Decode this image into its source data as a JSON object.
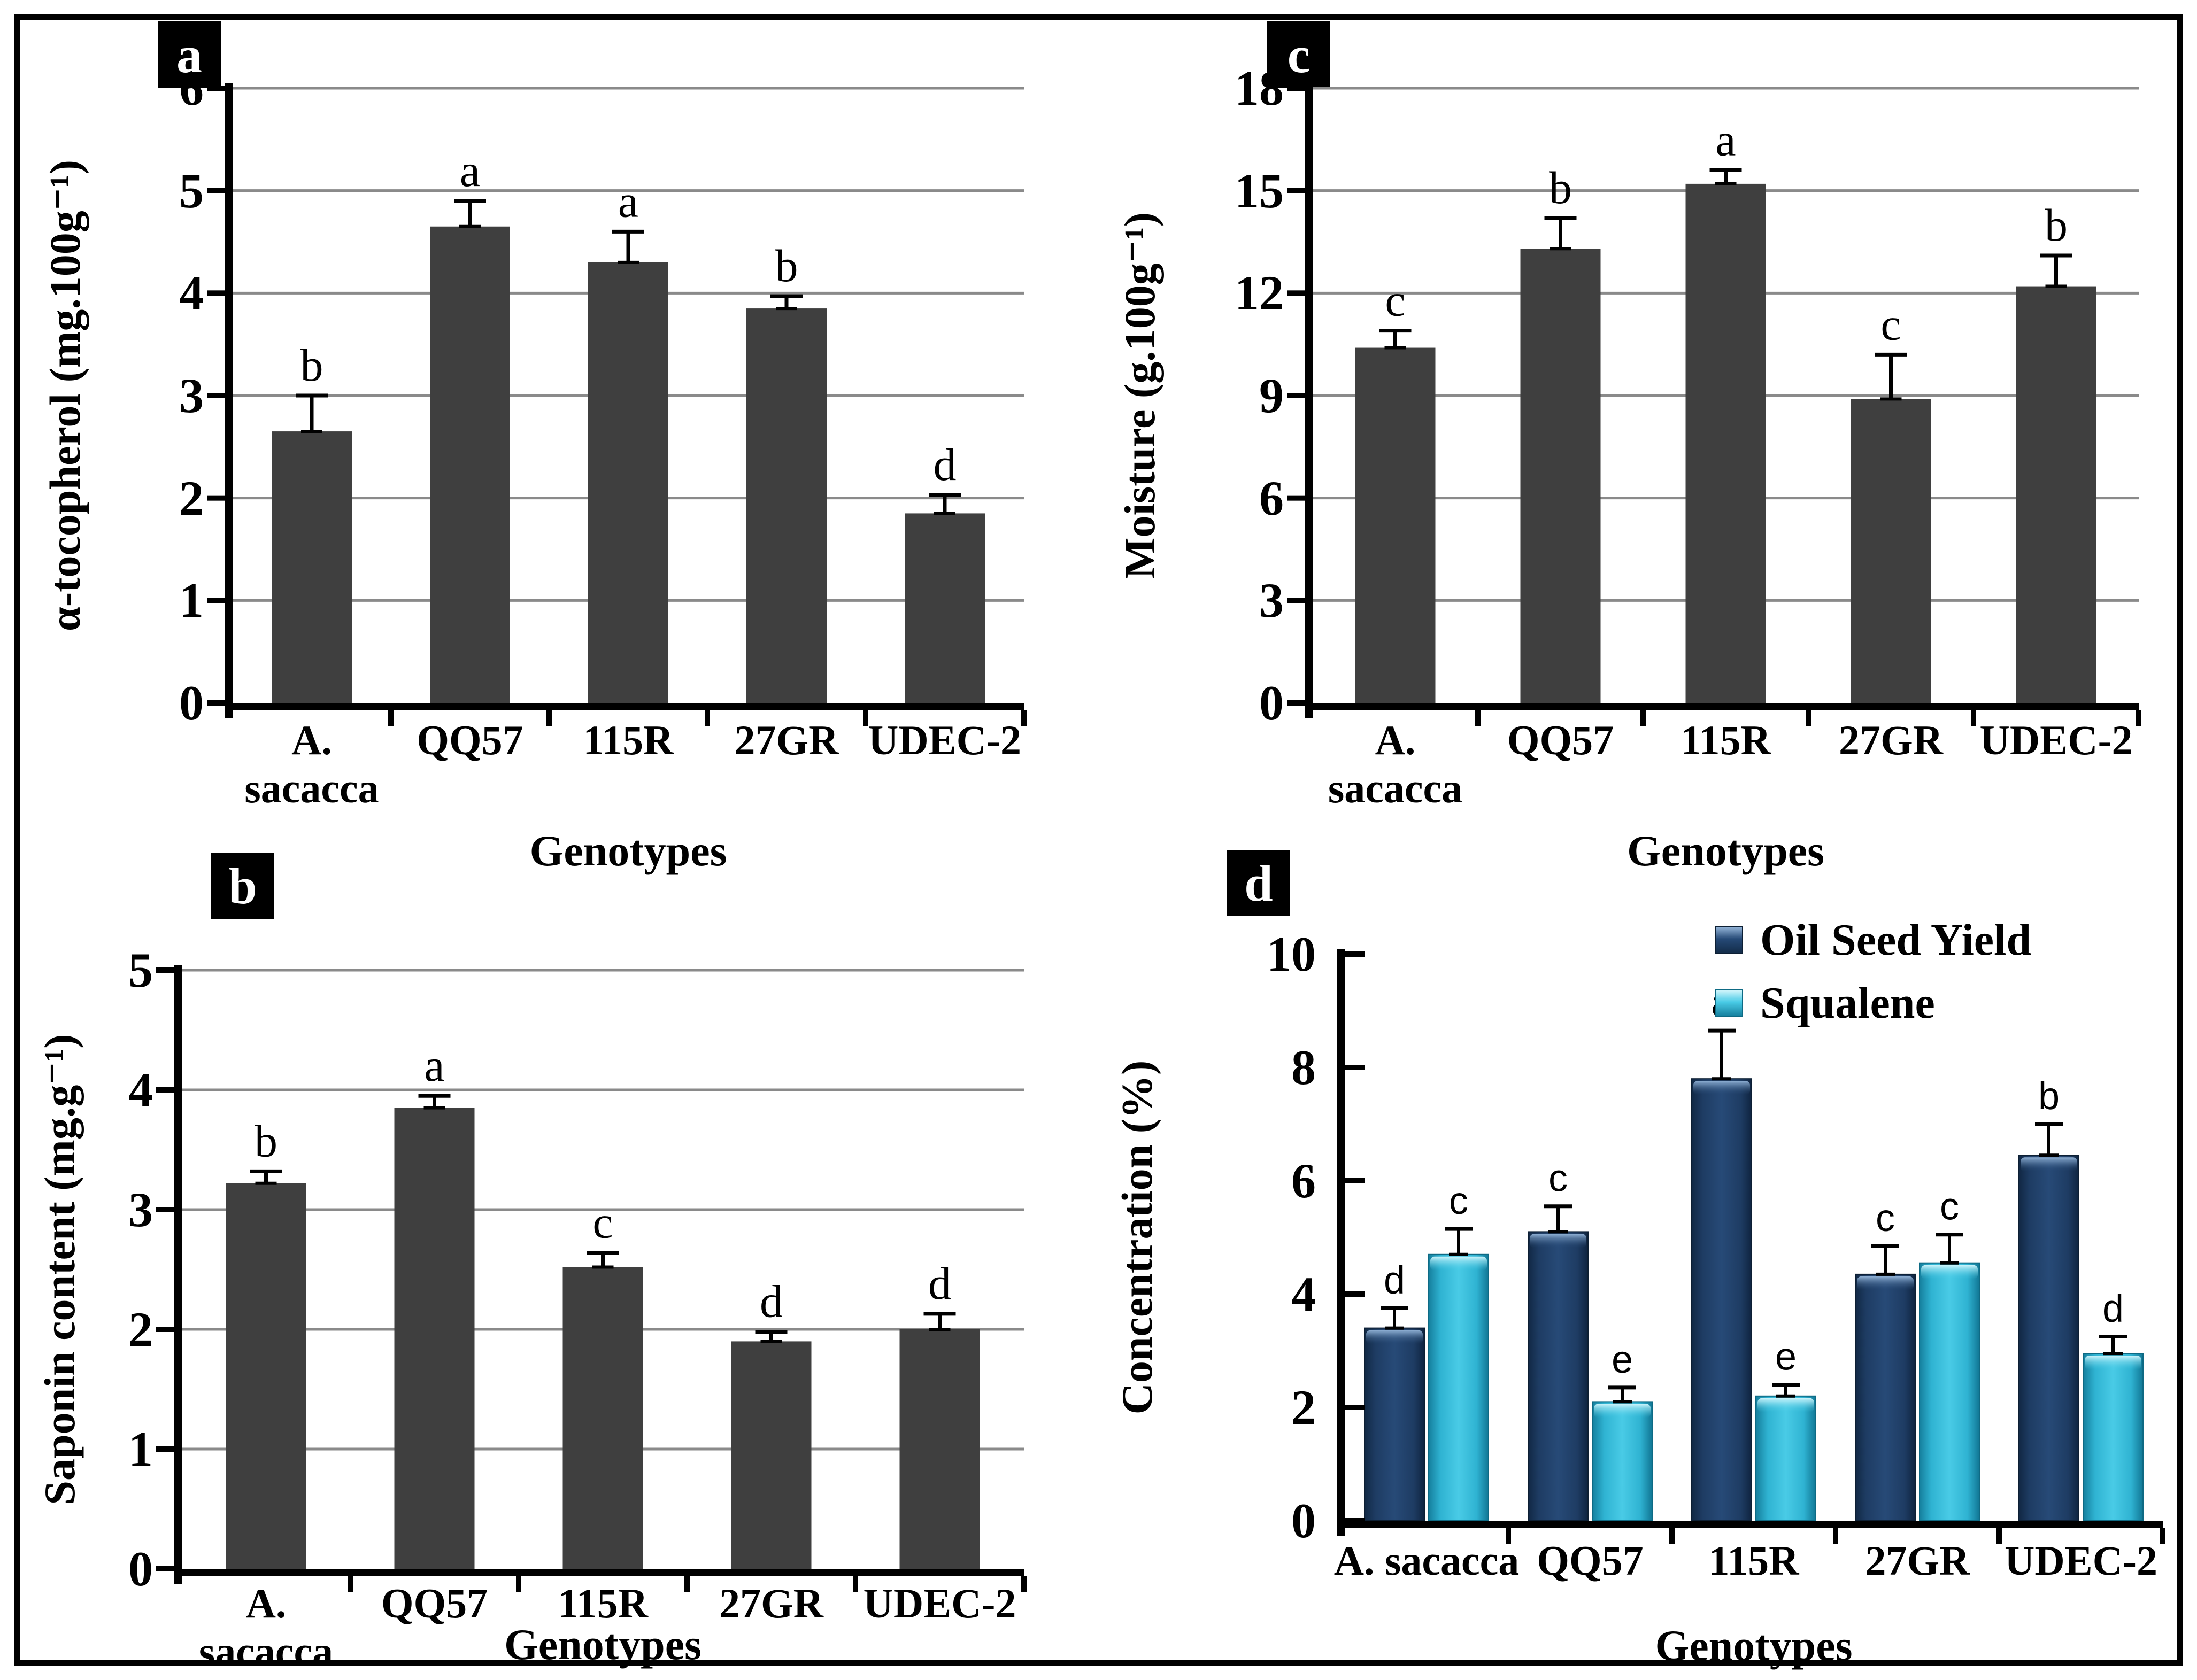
{
  "chart_data": [
    {
      "panel_letter": "a",
      "type": "bar",
      "ylabel": "α-tocopherol (mg.100g⁻¹)",
      "xlabel": "Genotypes",
      "categories": [
        "A. sacacca",
        "QQ57",
        "115R",
        "27GR",
        "UDEC-2"
      ],
      "ylim": [
        0,
        6
      ],
      "ytick_step": 1,
      "grid": true,
      "bar_color": "#3f3f3f",
      "series": [
        {
          "values": [
            2.65,
            4.65,
            4.3,
            3.85,
            1.85
          ],
          "errors": [
            0.35,
            0.25,
            0.3,
            0.12,
            0.18
          ],
          "sig_letters": [
            "b",
            "a",
            "a",
            "b",
            "d"
          ]
        }
      ]
    },
    {
      "panel_letter": "b",
      "type": "bar",
      "ylabel": "Saponin content (mg.g⁻¹)",
      "xlabel": "Genotypes",
      "categories": [
        "A. sacacca",
        "QQ57",
        "115R",
        "27GR",
        "UDEC-2"
      ],
      "ylim": [
        0,
        5
      ],
      "ytick_step": 1,
      "grid": true,
      "bar_color": "#3f3f3f",
      "series": [
        {
          "values": [
            3.22,
            3.85,
            2.52,
            1.9,
            2.0
          ],
          "errors": [
            0.1,
            0.1,
            0.12,
            0.08,
            0.13
          ],
          "sig_letters": [
            "b",
            "a",
            "c",
            "d",
            "d"
          ]
        }
      ]
    },
    {
      "panel_letter": "c",
      "type": "bar",
      "ylabel": "Moisture (g.100g⁻¹)",
      "xlabel": "Genotypes",
      "categories": [
        "A. sacacca",
        "QQ57",
        "115R",
        "27GR",
        "UDEC-2"
      ],
      "ylim": [
        0,
        18
      ],
      "ytick_step": 3,
      "grid": true,
      "bar_color": "#3f3f3f",
      "series": [
        {
          "values": [
            10.4,
            13.3,
            15.2,
            8.9,
            12.2
          ],
          "errors": [
            0.5,
            0.9,
            0.4,
            1.3,
            0.9
          ],
          "sig_letters": [
            "c",
            "b",
            "a",
            "c",
            "b"
          ]
        }
      ]
    },
    {
      "panel_letter": "d",
      "type": "bar",
      "ylabel": "Concentration (%)",
      "xlabel": "Genotypes",
      "categories": [
        "A. sacacca",
        "QQ57",
        "115R",
        "27GR",
        "UDEC-2"
      ],
      "ylim": [
        0,
        10
      ],
      "ytick_step": 2,
      "grid": false,
      "legend_position": "top-right-inside",
      "series": [
        {
          "name": "Oil Seed Yield",
          "color": "#1c3a5e",
          "values": [
            3.4,
            5.1,
            7.8,
            4.35,
            6.45
          ],
          "errors": [
            0.35,
            0.45,
            0.85,
            0.5,
            0.55
          ],
          "sig_letters": [
            "d",
            "c",
            "a",
            "c",
            "b"
          ]
        },
        {
          "name": "Squalene",
          "color": "#3bbcd9",
          "values": [
            4.7,
            2.1,
            2.2,
            4.55,
            2.95
          ],
          "errors": [
            0.45,
            0.25,
            0.2,
            0.5,
            0.3
          ],
          "sig_letters": [
            "c",
            "e",
            "e",
            "c",
            "d"
          ]
        }
      ]
    }
  ],
  "styles": {
    "background": "#ffffff",
    "axis_color": "#000000",
    "gridline_color": "#8a8a8a",
    "gray_bar_color": "#3f3f3f",
    "oil_seed_yield_color": "#1c3a5e",
    "squalene_color": "#3bbcd9",
    "significance_letter_color": "#000000"
  }
}
